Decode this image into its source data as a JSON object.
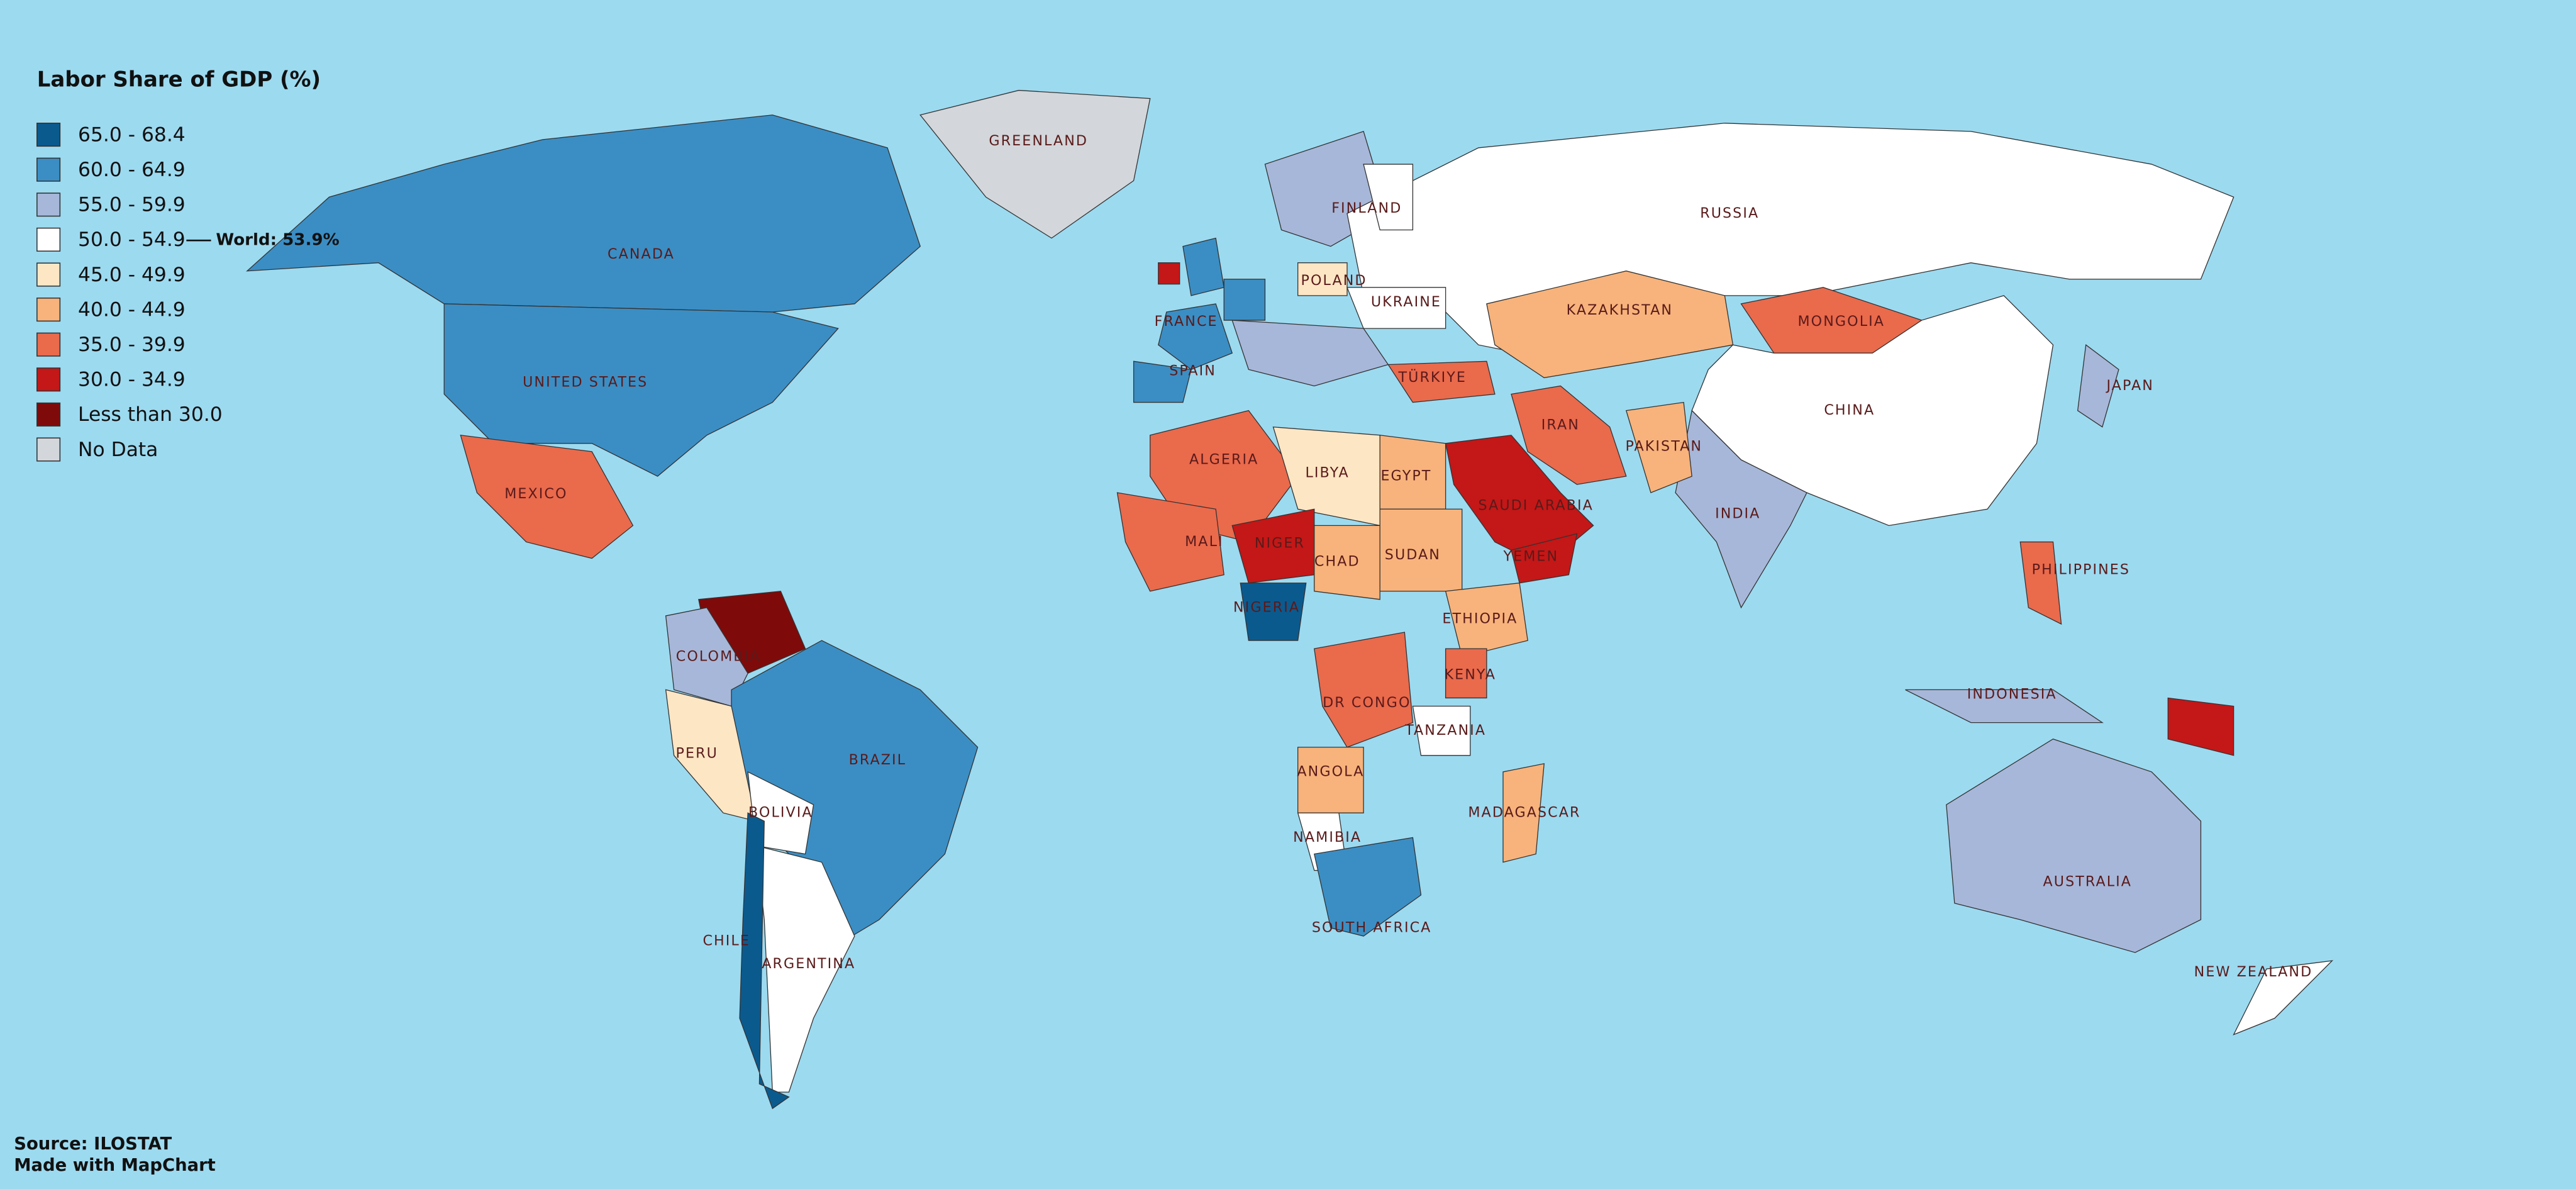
{
  "title": "Labor Share of GDP (%)",
  "legend": [
    {
      "label": "65.0 - 68.4",
      "color": "#0b5a8e"
    },
    {
      "label": "60.0 - 64.9",
      "color": "#3b8ec4"
    },
    {
      "label": "55.0 - 59.9",
      "color": "#a7b7d9"
    },
    {
      "label": "50.0 - 54.9",
      "color": "#ffffff"
    },
    {
      "label": "45.0 - 49.9",
      "color": "#fde6c4"
    },
    {
      "label": "40.0 - 44.9",
      "color": "#f7b37b"
    },
    {
      "label": "35.0 - 39.9",
      "color": "#ea6a4c"
    },
    {
      "label": "30.0 - 34.9",
      "color": "#c41717"
    },
    {
      "label": "Less than 30.0",
      "color": "#7f0a0a"
    },
    {
      "label": "No Data",
      "color": "#d3d6da"
    }
  ],
  "world_note": "World: 53.9%",
  "source": "Source: ILOSTAT",
  "credit": "Made with MapChart",
  "countries": [
    {
      "name": "CANADA",
      "color": "#3b8ec4"
    },
    {
      "name": "UNITED STATES",
      "color": "#3b8ec4"
    },
    {
      "name": "GREENLAND",
      "color": "#d3d6da"
    },
    {
      "name": "MEXICO",
      "color": "#ea6a4c"
    },
    {
      "name": "COLOMBIA",
      "color": "#a7b7d9"
    },
    {
      "name": "BRAZIL",
      "color": "#3b8ec4"
    },
    {
      "name": "PERU",
      "color": "#fde6c4"
    },
    {
      "name": "BOLIVIA",
      "color": "#ffffff"
    },
    {
      "name": "ARGENTINA",
      "color": "#ffffff"
    },
    {
      "name": "CHILE",
      "color": "#0b5a8e"
    },
    {
      "name": "RUSSIA",
      "color": "#ffffff"
    },
    {
      "name": "KAZAKHSTAN",
      "color": "#f7b37b"
    },
    {
      "name": "MONGOLIA",
      "color": "#ea6a4c"
    },
    {
      "name": "CHINA",
      "color": "#ffffff"
    },
    {
      "name": "INDIA",
      "color": "#a7b7d9"
    },
    {
      "name": "IRAN",
      "color": "#ea6a4c"
    },
    {
      "name": "SAUDI ARABIA",
      "color": "#c41717"
    },
    {
      "name": "TÜRKIYE",
      "color": "#ea6a4c"
    },
    {
      "name": "FRANCE",
      "color": "#3b8ec4"
    },
    {
      "name": "SPAIN",
      "color": "#3b8ec4"
    },
    {
      "name": "POLAND",
      "color": "#fde6c4"
    },
    {
      "name": "UKRAINE",
      "color": "#ffffff"
    },
    {
      "name": "FINLAND",
      "color": "#ffffff"
    },
    {
      "name": "ALGERIA",
      "color": "#ea6a4c"
    },
    {
      "name": "LIBYA",
      "color": "#fde6c4"
    },
    {
      "name": "EGYPT",
      "color": "#f7b37b"
    },
    {
      "name": "MALI",
      "color": "#ea6a4c"
    },
    {
      "name": "NIGER",
      "color": "#c41717"
    },
    {
      "name": "CHAD",
      "color": "#f7b37b"
    },
    {
      "name": "SUDAN",
      "color": "#f7b37b"
    },
    {
      "name": "ETHIOPIA",
      "color": "#f7b37b"
    },
    {
      "name": "NIGERIA",
      "color": "#0b5a8e"
    },
    {
      "name": "DR CONGO",
      "color": "#ea6a4c"
    },
    {
      "name": "ANGOLA",
      "color": "#f7b37b"
    },
    {
      "name": "NAMIBIA",
      "color": "#ffffff"
    },
    {
      "name": "SOUTH AFRICA",
      "color": "#3b8ec4"
    },
    {
      "name": "KENYA",
      "color": "#ea6a4c"
    },
    {
      "name": "TANZANIA",
      "color": "#ffffff"
    },
    {
      "name": "MADAGASCAR",
      "color": "#f7b37b"
    },
    {
      "name": "PAKISTAN",
      "color": "#f7b37b"
    },
    {
      "name": "YEMEN",
      "color": "#c41717"
    },
    {
      "name": "JAPAN",
      "color": "#a7b7d9"
    },
    {
      "name": "PHILIPPINES",
      "color": "#ea6a4c"
    },
    {
      "name": "INDONESIA",
      "color": "#a7b7d9"
    },
    {
      "name": "AUSTRALIA",
      "color": "#a7b7d9"
    },
    {
      "name": "NEW ZEALAND",
      "color": "#ffffff"
    }
  ]
}
